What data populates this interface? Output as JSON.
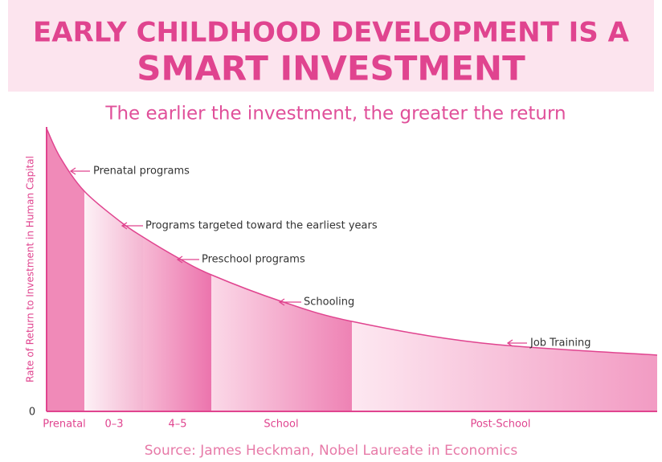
{
  "header": {
    "title_line1": "EARLY CHILDHOOD DEVELOPMENT IS A",
    "title_line2": "SMART INVESTMENT"
  },
  "subtitle": "The earlier the investment, the greater the return",
  "y_axis_label": "Rate of Return to Investment in Human Capital",
  "origin_label": "0",
  "annotations": [
    "Prenatal programs",
    "Programs targeted toward the earliest years",
    "Preschool programs",
    "Schooling",
    "Job Training"
  ],
  "stages": [
    "Prenatal",
    "0–3",
    "4–5",
    "School",
    "Post-School"
  ],
  "source": "Source: James Heckman, Nobel Laureate in Economics"
}
